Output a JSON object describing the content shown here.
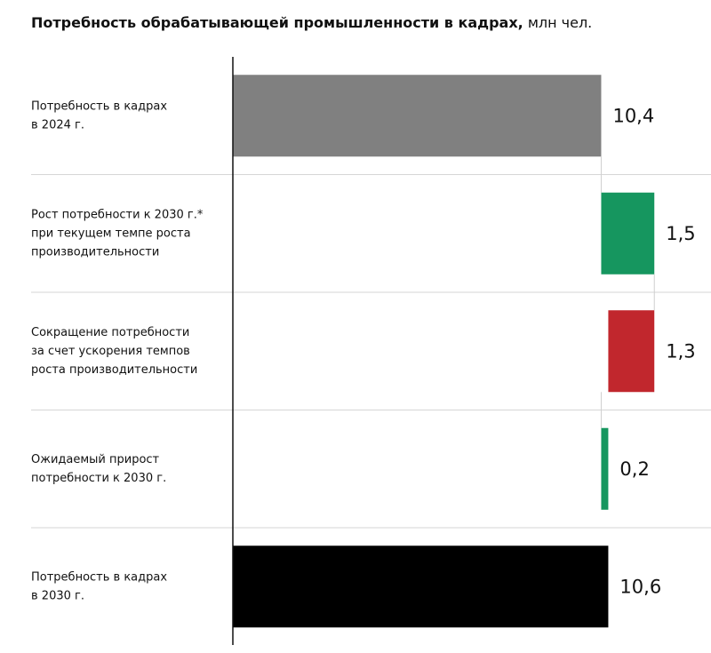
{
  "chart_data": {
    "type": "waterfall",
    "title": "Потребность обрабатывающей промышленности в кадрах,",
    "subtitle": "млн чел.",
    "categories": [
      [
        "Потребность в кадрах",
        "в 2024 г."
      ],
      [
        "Рост потребности к 2030 г.*",
        "при текущем темпе роста",
        "производительности"
      ],
      [
        "Сокращение потребности",
        "за счет ускорения темпов",
        "роста производительности"
      ],
      [
        "Ожидаемый прирост",
        "потребности к 2030 г."
      ],
      [
        "Потребность в кадрах",
        "в 2030 г."
      ]
    ],
    "values": [
      10.4,
      1.5,
      -1.3,
      0.2,
      10.6
    ],
    "value_labels": [
      "10,4",
      "1,5",
      "1,3",
      "0,2",
      "10,6"
    ],
    "measure": [
      "absolute",
      "relative",
      "relative",
      "net",
      "total"
    ],
    "colors": [
      "#808080",
      "#16965f",
      "#c1272d",
      "#16965f",
      "#000000"
    ],
    "xlim": [
      0,
      13.5
    ]
  }
}
